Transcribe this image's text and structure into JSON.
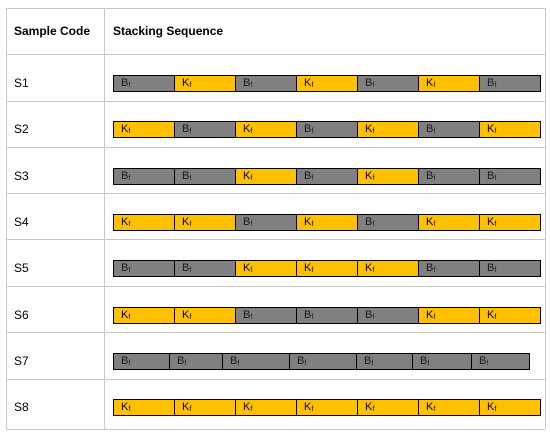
{
  "headers": {
    "code": "Sample Code",
    "sequence": "Stacking Sequence"
  },
  "fiber_labels": {
    "B": "B",
    "K": "K",
    "sub": "f"
  },
  "colors": {
    "B": "#808080",
    "K": "#ffc000",
    "border": "#000000",
    "grid": "#c8c8c8"
  },
  "rows": [
    {
      "code": "S1",
      "sequence": [
        "B",
        "K",
        "B",
        "K",
        "B",
        "K",
        "B"
      ]
    },
    {
      "code": "S2",
      "sequence": [
        "K",
        "B",
        "K",
        "B",
        "K",
        "B",
        "K"
      ]
    },
    {
      "code": "S3",
      "sequence": [
        "B",
        "B",
        "K",
        "B",
        "K",
        "B",
        "B"
      ]
    },
    {
      "code": "S4",
      "sequence": [
        "K",
        "K",
        "B",
        "K",
        "B",
        "K",
        "K"
      ]
    },
    {
      "code": "S5",
      "sequence": [
        "B",
        "B",
        "K",
        "K",
        "K",
        "B",
        "B"
      ]
    },
    {
      "code": "S6",
      "sequence": [
        "K",
        "K",
        "B",
        "B",
        "B",
        "K",
        "K"
      ]
    },
    {
      "code": "S7",
      "sequence": [
        "B",
        "B",
        "B",
        "B",
        "B",
        "B",
        "B"
      ]
    },
    {
      "code": "S8",
      "sequence": [
        "K",
        "K",
        "K",
        "K",
        "K",
        "K",
        "K"
      ]
    }
  ]
}
